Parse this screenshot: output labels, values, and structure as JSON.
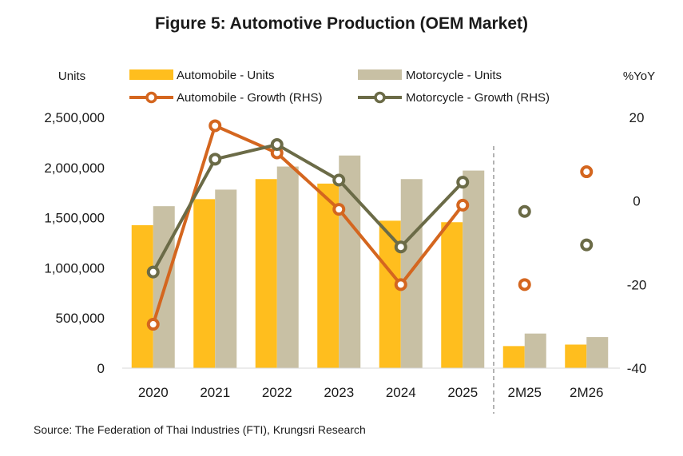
{
  "title": "Figure 5: Automotive Production (OEM Market)",
  "source": "Source: The Federation of Thai  Industries (FTI), Krungsri Research",
  "chart_data": {
    "type": "bar",
    "categories": [
      "2020",
      "2021",
      "2022",
      "2023",
      "2024",
      "2025",
      "2M25",
      "2M26"
    ],
    "left_axis_label": "Units",
    "right_axis_label": "%YoY",
    "ylim": [
      0,
      2500000
    ],
    "y_ticks": [
      "0",
      "500,000",
      "1,000,000",
      "1,500,000",
      "2,000,000",
      "2,500,000"
    ],
    "y2lim": [
      -40,
      20
    ],
    "y2_ticks": [
      "-40",
      "-20",
      "0",
      "20"
    ],
    "grid": false,
    "legend_position": "top",
    "divider_after_category": "2025",
    "colors": {
      "automobile_units": "#FFBE1E",
      "motorcycle_units": "#C8C0A4",
      "automobile_growth": "#D4661F",
      "motorcycle_growth": "#6B6B47"
    },
    "series": [
      {
        "name": "Automobile - Units",
        "kind": "bar",
        "axis": "left",
        "values": [
          1425000,
          1685000,
          1885000,
          1840000,
          1470000,
          1455000,
          220000,
          235000
        ]
      },
      {
        "name": "Motorcycle - Units",
        "kind": "bar",
        "axis": "left",
        "values": [
          1615000,
          1780000,
          2010000,
          2120000,
          1885000,
          1970000,
          345000,
          310000
        ]
      },
      {
        "name": "Automobile - Growth (RHS)",
        "kind": "line",
        "axis": "right",
        "values": [
          -29.5,
          18,
          11.5,
          -2,
          -20,
          -1,
          -20,
          7
        ],
        "connected_count": 6
      },
      {
        "name": "Motorcycle - Growth (RHS)",
        "kind": "line",
        "axis": "right",
        "values": [
          -17,
          10,
          13.5,
          5,
          -11,
          4.5,
          -2.5,
          -10.5
        ],
        "connected_count": 6
      }
    ]
  }
}
